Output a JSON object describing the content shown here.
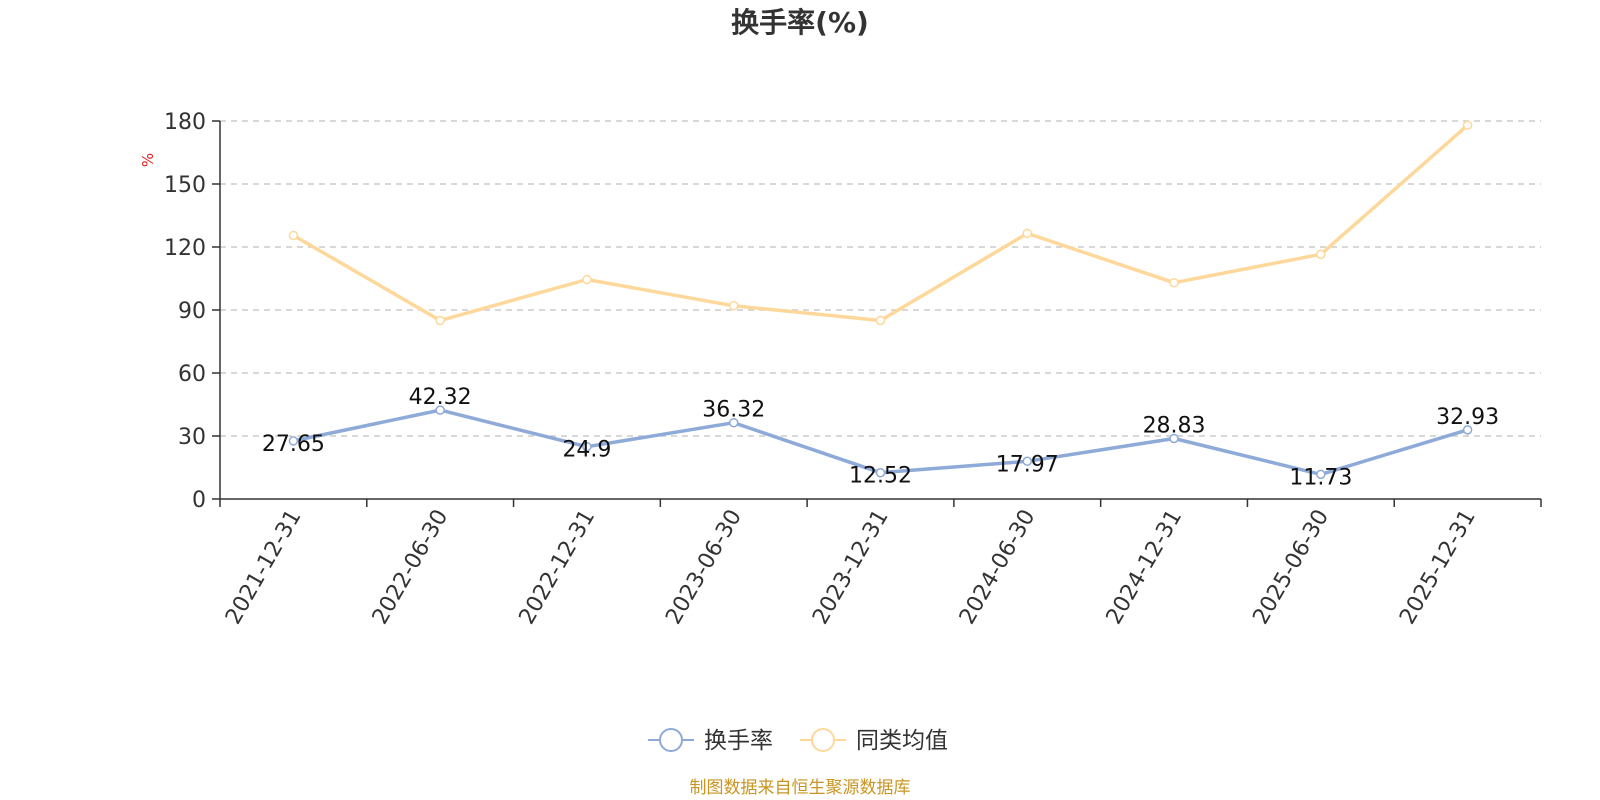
{
  "chart_data": {
    "type": "line",
    "title": "换手率(%)",
    "ylabel": "%",
    "xlabel": "",
    "categories": [
      "2021-12-31",
      "2022-06-30",
      "2022-12-31",
      "2023-06-30",
      "2023-12-31",
      "2024-06-30",
      "2024-12-31",
      "2025-06-30",
      "2025-12-31"
    ],
    "ylim": [
      0,
      180
    ],
    "yticks": [
      0,
      30,
      60,
      90,
      120,
      150,
      180
    ],
    "grid": true,
    "legend_position": "bottom-center",
    "series": [
      {
        "name": "换手率",
        "color": "#8eaad8",
        "values": [
          27.65,
          42.32,
          24.9,
          36.32,
          12.52,
          17.97,
          28.83,
          11.73,
          32.93
        ],
        "labels": [
          "27.65",
          "42.32",
          "24.9",
          "36.32",
          "12.52",
          "17.97",
          "28.83",
          "11.73",
          "32.93"
        ]
      },
      {
        "name": "同类均值",
        "color": "#fdd89a",
        "values": [
          125.5,
          85,
          104.5,
          92,
          85,
          126.5,
          103,
          116.5,
          178
        ]
      }
    ],
    "source": "制图数据来自恒生聚源数据库"
  }
}
